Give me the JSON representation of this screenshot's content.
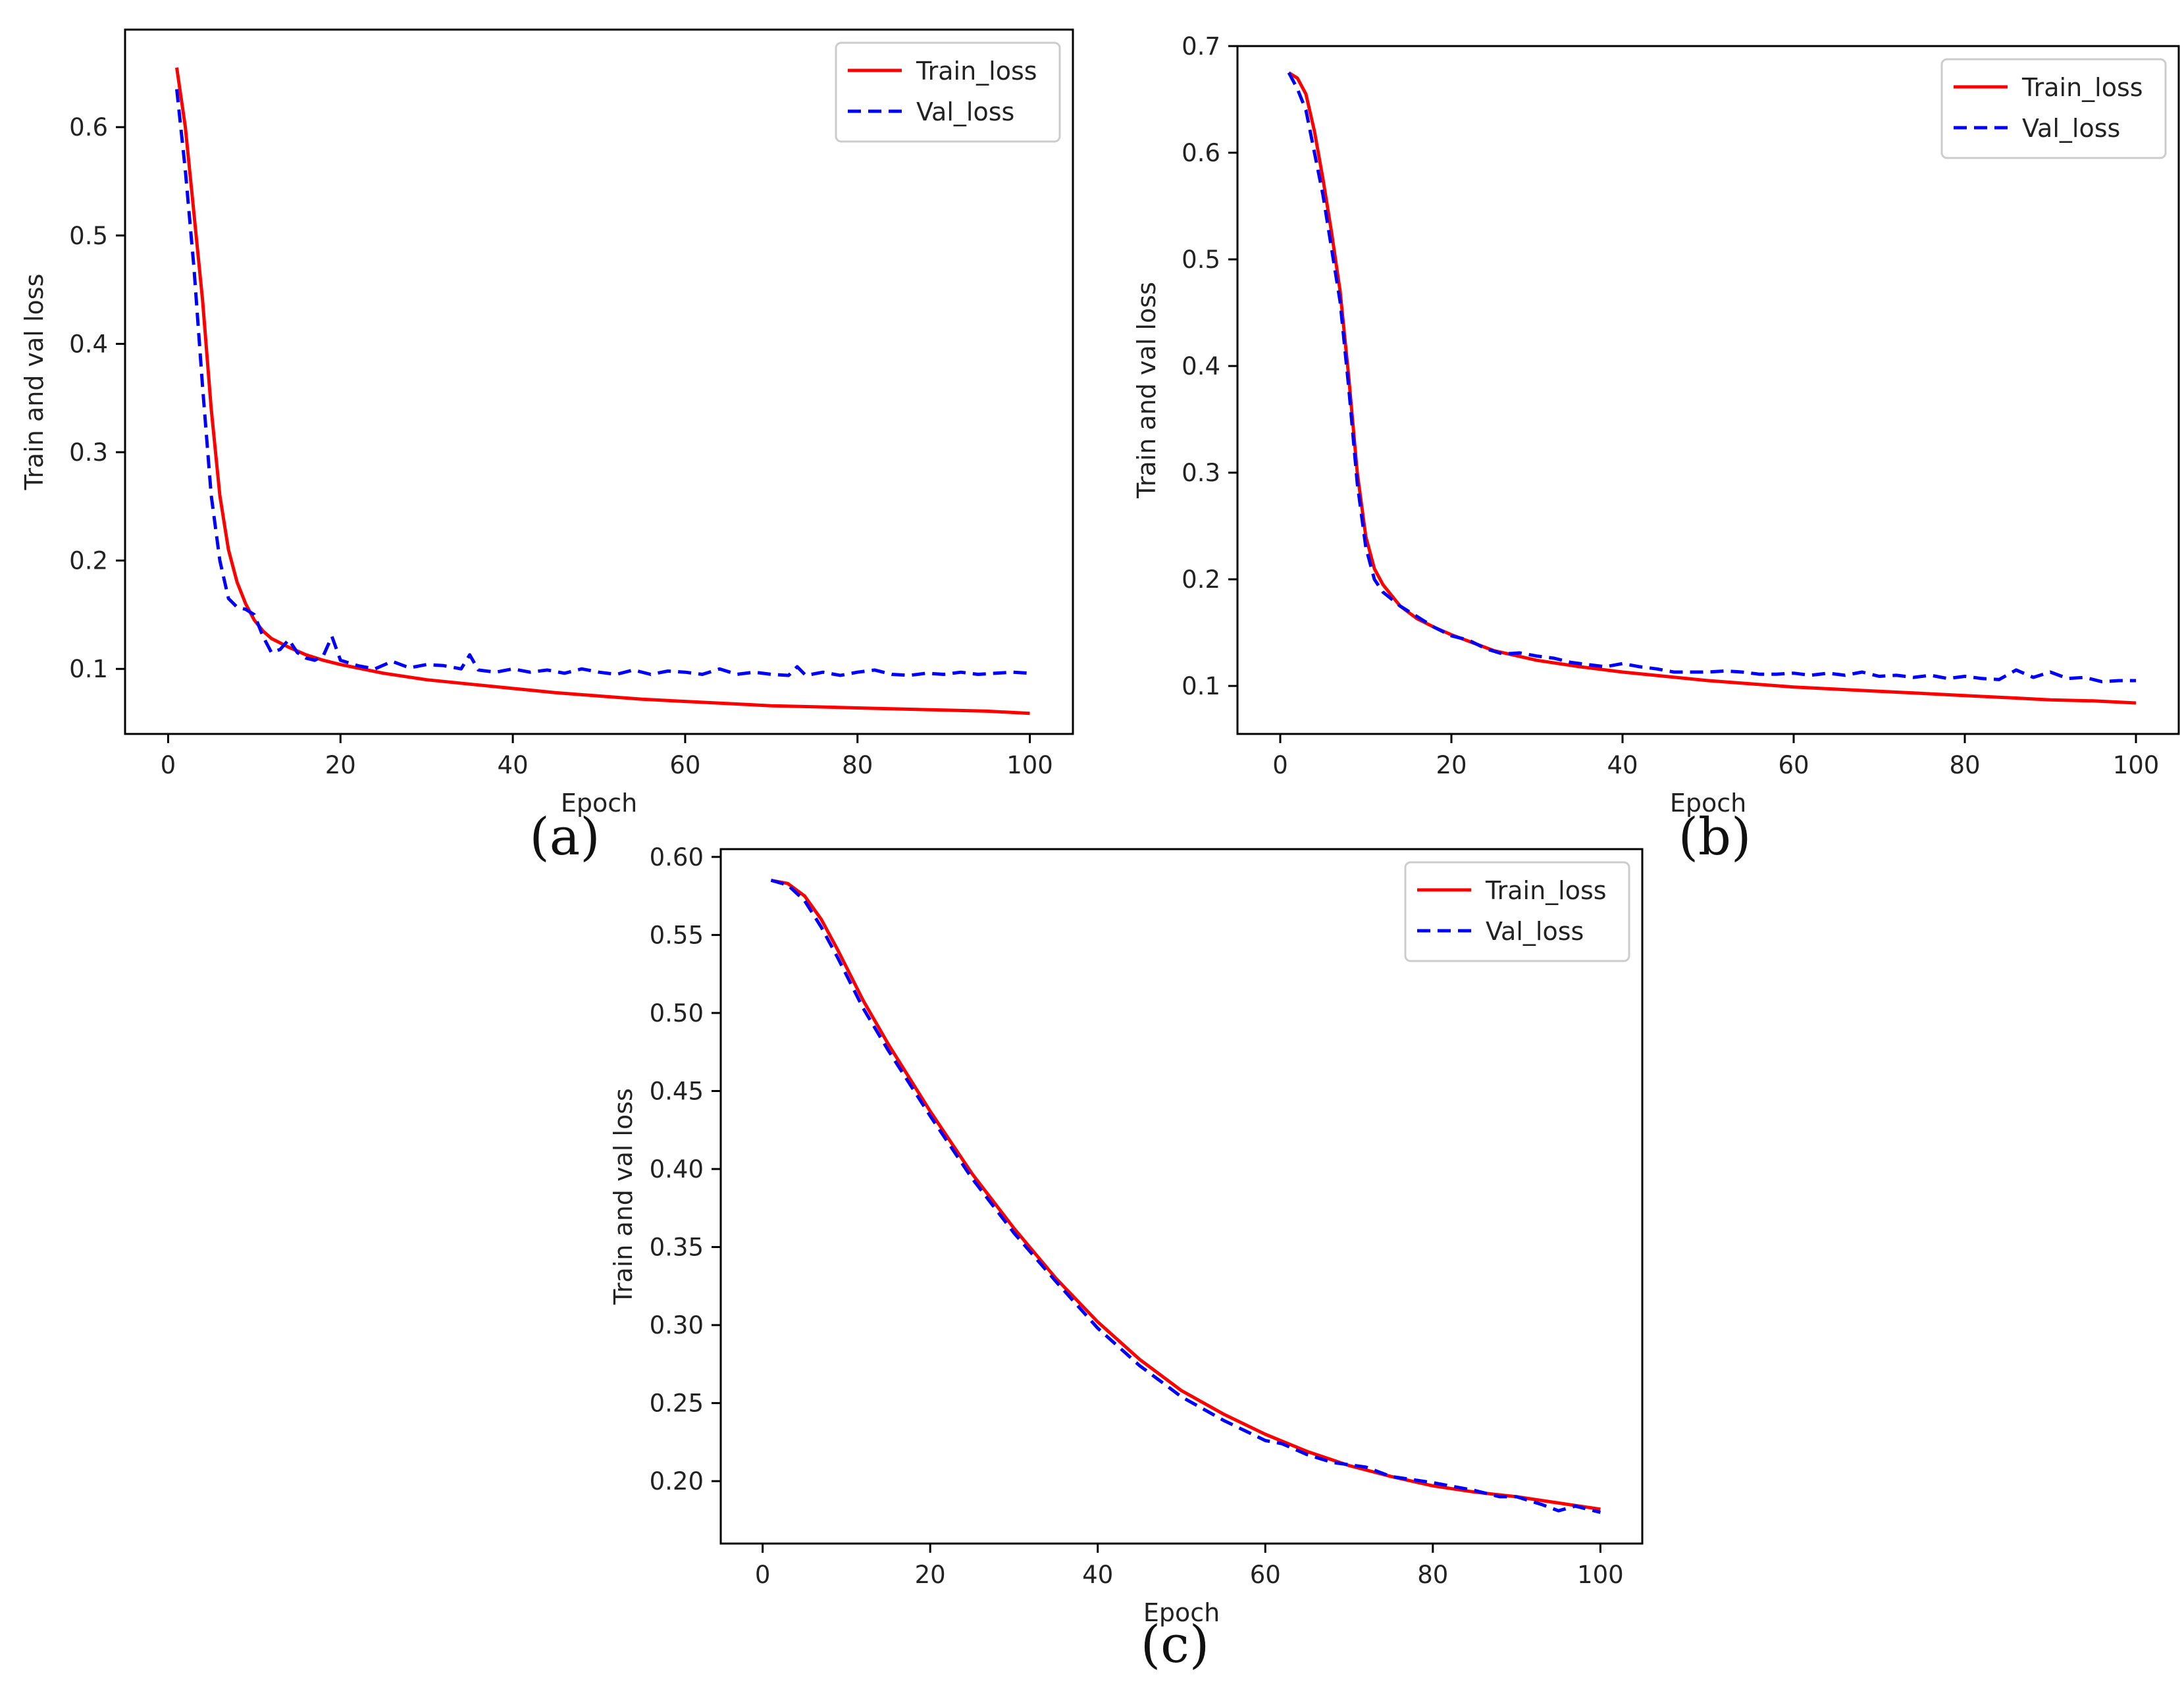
{
  "figure": {
    "panels": [
      {
        "label": "(a)"
      },
      {
        "label": "(b)"
      },
      {
        "label": "(c)"
      }
    ]
  },
  "colors": {
    "train": "#ff0000",
    "val": "#0000ff",
    "axis": "#000000",
    "text": "#222222"
  },
  "chart_data": [
    {
      "type": "line",
      "title": "",
      "panel_label": "(a)",
      "xlabel": "Epoch",
      "ylabel": "Train and val loss",
      "xlim": [
        -5,
        105
      ],
      "ylim": [
        0.04,
        0.69
      ],
      "xticks": [
        0,
        20,
        40,
        60,
        80,
        100
      ],
      "yticks": [
        0.1,
        0.2,
        0.3,
        0.4,
        0.5,
        0.6
      ],
      "xtick_labels": [
        "0",
        "20",
        "40",
        "60",
        "80",
        "100"
      ],
      "ytick_labels": [
        "0.1",
        "0.2",
        "0.3",
        "0.4",
        "0.5",
        "0.6"
      ],
      "legend": {
        "placement": "top-right",
        "entries": [
          "Train_loss",
          "Val_loss"
        ]
      },
      "series": [
        {
          "name": "Train_loss",
          "style": "solid",
          "x": [
            1,
            2,
            3,
            4,
            5,
            6,
            7,
            8,
            9,
            10,
            11,
            12,
            14,
            16,
            18,
            20,
            25,
            30,
            35,
            40,
            45,
            50,
            55,
            60,
            65,
            70,
            75,
            80,
            85,
            90,
            95,
            100
          ],
          "y": [
            0.655,
            0.6,
            0.52,
            0.44,
            0.34,
            0.26,
            0.21,
            0.18,
            0.16,
            0.145,
            0.135,
            0.128,
            0.12,
            0.113,
            0.108,
            0.104,
            0.096,
            0.09,
            0.086,
            0.082,
            0.078,
            0.075,
            0.072,
            0.07,
            0.068,
            0.066,
            0.065,
            0.064,
            0.063,
            0.062,
            0.061,
            0.059
          ]
        },
        {
          "name": "Val_loss",
          "style": "dashed",
          "x": [
            1,
            2,
            3,
            4,
            5,
            6,
            7,
            8,
            9,
            10,
            11,
            12,
            13,
            14,
            15,
            16,
            17,
            18,
            19,
            20,
            22,
            24,
            26,
            28,
            30,
            32,
            34,
            35,
            36,
            38,
            40,
            42,
            44,
            46,
            48,
            50,
            52,
            54,
            56,
            58,
            60,
            62,
            64,
            66,
            68,
            70,
            72,
            73,
            74,
            76,
            78,
            80,
            82,
            84,
            86,
            88,
            90,
            92,
            94,
            96,
            98,
            100
          ],
          "y": [
            0.635,
            0.56,
            0.47,
            0.36,
            0.26,
            0.2,
            0.165,
            0.157,
            0.155,
            0.15,
            0.13,
            0.115,
            0.118,
            0.127,
            0.115,
            0.11,
            0.108,
            0.112,
            0.13,
            0.108,
            0.103,
            0.1,
            0.107,
            0.101,
            0.104,
            0.103,
            0.1,
            0.113,
            0.099,
            0.097,
            0.1,
            0.097,
            0.099,
            0.096,
            0.1,
            0.097,
            0.095,
            0.099,
            0.095,
            0.098,
            0.097,
            0.095,
            0.1,
            0.095,
            0.097,
            0.095,
            0.094,
            0.102,
            0.094,
            0.097,
            0.094,
            0.097,
            0.099,
            0.095,
            0.094,
            0.096,
            0.095,
            0.097,
            0.095,
            0.096,
            0.097,
            0.096
          ]
        }
      ]
    },
    {
      "type": "line",
      "title": "",
      "panel_label": "(b)",
      "xlabel": "Epoch",
      "ylabel": "Train and val loss",
      "xlim": [
        -5,
        105
      ],
      "ylim": [
        0.055,
        0.7
      ],
      "xticks": [
        0,
        20,
        40,
        60,
        80,
        100
      ],
      "yticks": [
        0.1,
        0.2,
        0.3,
        0.4,
        0.5,
        0.6,
        0.7
      ],
      "xtick_labels": [
        "0",
        "20",
        "40",
        "60",
        "80",
        "100"
      ],
      "ytick_labels": [
        "0.1",
        "0.2",
        "0.3",
        "0.4",
        "0.5",
        "0.6",
        "0.7"
      ],
      "legend": {
        "placement": "top-right",
        "entries": [
          "Train_loss",
          "Val_loss"
        ]
      },
      "series": [
        {
          "name": "Train_loss",
          "style": "solid",
          "x": [
            1,
            2,
            3,
            4,
            5,
            6,
            7,
            8,
            9,
            10,
            11,
            12,
            13,
            14,
            16,
            18,
            20,
            25,
            30,
            35,
            40,
            45,
            50,
            55,
            60,
            65,
            70,
            75,
            80,
            85,
            90,
            95,
            100
          ],
          "y": [
            0.675,
            0.67,
            0.655,
            0.62,
            0.575,
            0.525,
            0.47,
            0.39,
            0.3,
            0.24,
            0.21,
            0.195,
            0.185,
            0.175,
            0.163,
            0.155,
            0.148,
            0.133,
            0.124,
            0.118,
            0.113,
            0.109,
            0.105,
            0.102,
            0.099,
            0.097,
            0.095,
            0.093,
            0.091,
            0.089,
            0.087,
            0.086,
            0.084
          ]
        },
        {
          "name": "Val_loss",
          "style": "dashed",
          "x": [
            1,
            2,
            3,
            4,
            5,
            6,
            7,
            8,
            9,
            10,
            11,
            12,
            14,
            16,
            18,
            20,
            22,
            24,
            26,
            28,
            30,
            32,
            34,
            36,
            38,
            40,
            42,
            44,
            46,
            48,
            50,
            52,
            54,
            56,
            58,
            60,
            62,
            64,
            66,
            68,
            70,
            72,
            74,
            76,
            78,
            80,
            82,
            84,
            86,
            88,
            90,
            92,
            94,
            96,
            98,
            100
          ],
          "y": [
            0.675,
            0.66,
            0.64,
            0.6,
            0.56,
            0.51,
            0.46,
            0.38,
            0.29,
            0.23,
            0.2,
            0.188,
            0.175,
            0.165,
            0.155,
            0.147,
            0.143,
            0.135,
            0.13,
            0.131,
            0.128,
            0.126,
            0.122,
            0.12,
            0.118,
            0.121,
            0.118,
            0.116,
            0.113,
            0.113,
            0.113,
            0.114,
            0.113,
            0.111,
            0.111,
            0.112,
            0.11,
            0.112,
            0.11,
            0.113,
            0.109,
            0.11,
            0.108,
            0.11,
            0.107,
            0.109,
            0.107,
            0.106,
            0.115,
            0.108,
            0.113,
            0.107,
            0.108,
            0.104,
            0.105,
            0.105
          ]
        }
      ]
    },
    {
      "type": "line",
      "title": "",
      "panel_label": "(c)",
      "xlabel": "Epoch",
      "ylabel": "Train and val loss",
      "xlim": [
        -5,
        105
      ],
      "ylim": [
        0.16,
        0.605
      ],
      "xticks": [
        0,
        20,
        40,
        60,
        80,
        100
      ],
      "yticks": [
        0.2,
        0.25,
        0.3,
        0.35,
        0.4,
        0.45,
        0.5,
        0.55,
        0.6
      ],
      "xtick_labels": [
        "0",
        "20",
        "40",
        "60",
        "80",
        "100"
      ],
      "ytick_labels": [
        "0.20",
        "0.25",
        "0.30",
        "0.35",
        "0.40",
        "0.45",
        "0.50",
        "0.55",
        "0.60"
      ],
      "legend": {
        "placement": "top-right",
        "entries": [
          "Train_loss",
          "Val_loss"
        ]
      },
      "series": [
        {
          "name": "Train_loss",
          "style": "solid",
          "x": [
            1,
            3,
            5,
            7,
            9,
            12,
            15,
            20,
            25,
            30,
            35,
            40,
            45,
            50,
            55,
            60,
            65,
            70,
            75,
            80,
            85,
            90,
            95,
            100
          ],
          "y": [
            0.585,
            0.583,
            0.575,
            0.56,
            0.54,
            0.508,
            0.48,
            0.437,
            0.397,
            0.362,
            0.33,
            0.302,
            0.278,
            0.258,
            0.243,
            0.23,
            0.219,
            0.21,
            0.203,
            0.197,
            0.193,
            0.19,
            0.186,
            0.182
          ]
        },
        {
          "name": "Val_loss",
          "style": "dashed",
          "x": [
            1,
            3,
            5,
            7,
            9,
            12,
            15,
            20,
            25,
            30,
            35,
            40,
            45,
            50,
            55,
            60,
            62,
            65,
            68,
            72,
            75,
            80,
            85,
            88,
            90,
            93,
            95,
            97,
            100
          ],
          "y": [
            0.585,
            0.582,
            0.572,
            0.555,
            0.535,
            0.503,
            0.476,
            0.434,
            0.394,
            0.359,
            0.328,
            0.298,
            0.274,
            0.254,
            0.239,
            0.226,
            0.224,
            0.217,
            0.212,
            0.209,
            0.203,
            0.199,
            0.194,
            0.19,
            0.19,
            0.185,
            0.181,
            0.184,
            0.18
          ]
        }
      ]
    }
  ]
}
